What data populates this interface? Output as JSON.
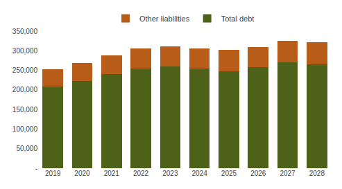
{
  "chart_data": {
    "type": "bar",
    "stacked": true,
    "categories": [
      "2019",
      "2020",
      "2021",
      "2022",
      "2023",
      "2024",
      "2025",
      "2026",
      "2027",
      "2028"
    ],
    "series": [
      {
        "name": "Total debt",
        "color": "#4d6118",
        "values": [
          208000,
          222000,
          240000,
          255000,
          260000,
          255000,
          248000,
          258000,
          270000,
          265000
        ]
      },
      {
        "name": "Other liabilities",
        "color": "#b85c1a",
        "values": [
          44000,
          46000,
          48000,
          50000,
          52000,
          50000,
          54000,
          52000,
          55000,
          57000
        ]
      }
    ],
    "ylim": [
      0,
      350000
    ],
    "yticks": [
      {
        "value": 0,
        "label": "-"
      },
      {
        "value": 50000,
        "label": "50,000"
      },
      {
        "value": 100000,
        "label": "100,000"
      },
      {
        "value": 150000,
        "label": "150,000"
      },
      {
        "value": 200000,
        "label": "200,000"
      },
      {
        "value": 250000,
        "label": "250,000"
      },
      {
        "value": 300000,
        "label": "300,000"
      },
      {
        "value": 350000,
        "label": "350,000"
      }
    ],
    "grid": false,
    "legend": "top"
  }
}
